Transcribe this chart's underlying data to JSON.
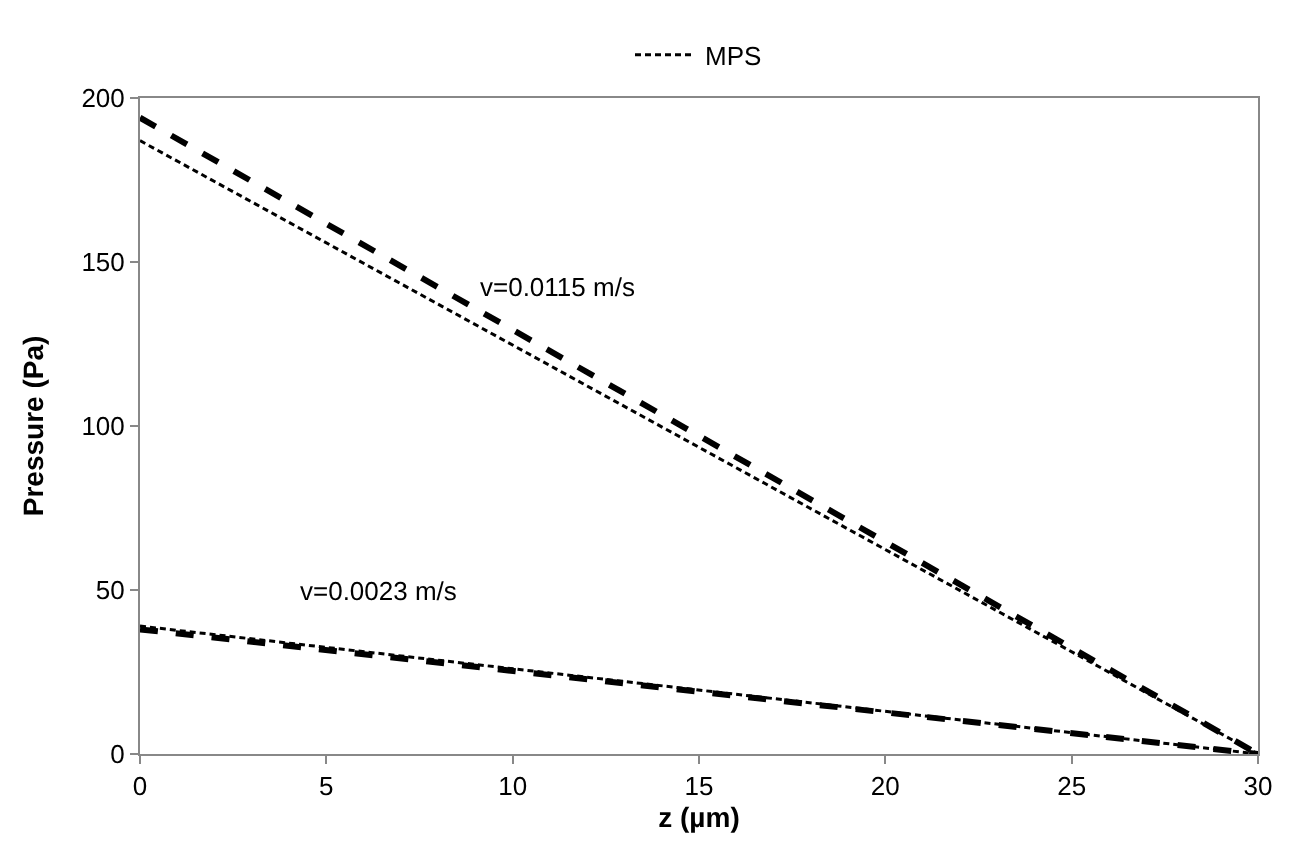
{
  "chart_data": {
    "type": "line",
    "xlabel": "z (µm)",
    "ylabel": "Pressure (Pa)",
    "x": [
      0,
      30
    ],
    "series": [
      {
        "name": "MPS",
        "color": "#000000",
        "line_style": "dotted",
        "values": [
          187,
          0
        ]
      },
      {
        "color": "#000000",
        "line_style": "dashed",
        "values": [
          194,
          0
        ]
      },
      {
        "color": "#000000",
        "line_style": "dotted",
        "values": [
          39,
          0
        ]
      },
      {
        "color": "#000000",
        "line_style": "dashed",
        "values": [
          38,
          0
        ]
      }
    ],
    "annotations": [
      "v=0.0115 m/s",
      "v=0.0023 m/s"
    ],
    "xlim": [
      0,
      30
    ],
    "xticks": [
      0,
      5,
      10,
      15,
      20,
      25,
      30
    ],
    "ylim": [
      0,
      200
    ],
    "yticks": [
      0,
      50,
      100,
      150,
      200
    ],
    "legend": "top",
    "marker": "none"
  }
}
